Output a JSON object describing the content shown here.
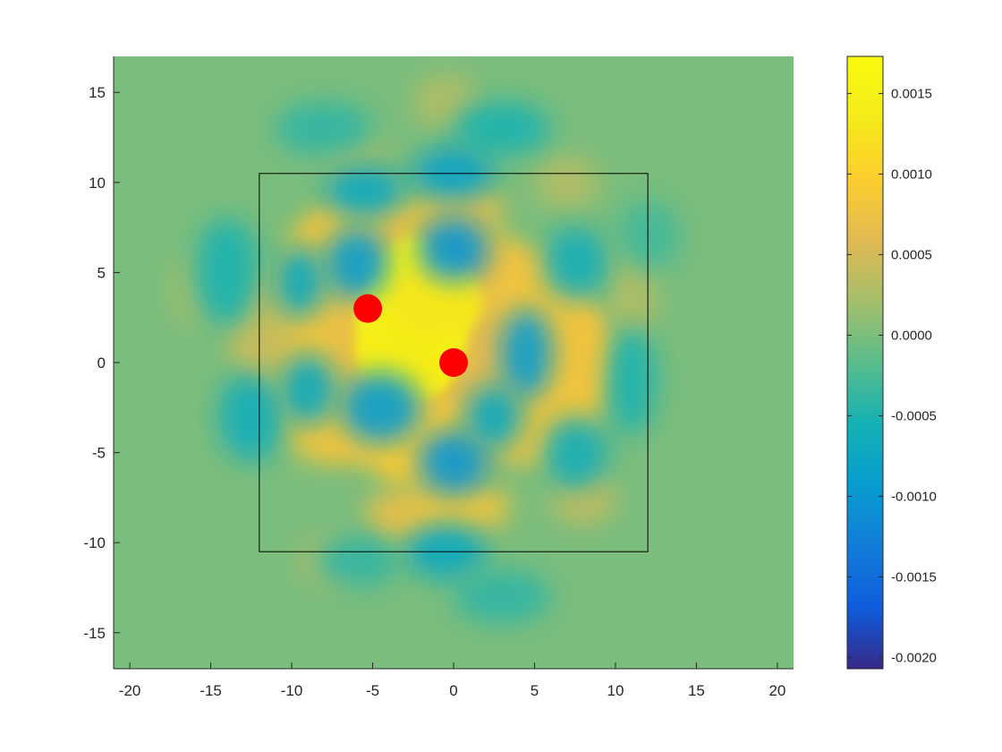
{
  "chart_data": {
    "type": "heatmap",
    "title": "",
    "xlabel": "",
    "ylabel": "",
    "xlim": [
      -21,
      21
    ],
    "ylim": [
      -17,
      17
    ],
    "x_ticks": [
      -20,
      -15,
      -10,
      -5,
      0,
      5,
      10,
      15,
      20
    ],
    "y_ticks": [
      15,
      10,
      5,
      0,
      -5,
      -10,
      -15
    ],
    "x_tick_labels": [
      "-20",
      "-15",
      "-10",
      "-5",
      "0",
      "5",
      "10",
      "15",
      "20"
    ],
    "y_tick_labels": [
      "15",
      "10",
      "5",
      "0",
      "-5",
      "-10",
      "-15"
    ],
    "colormap": "parula",
    "background_value": 0.0,
    "colorbar": {
      "range": [
        -0.00207,
        0.00173
      ],
      "ticks": [
        0.0015,
        0.001,
        0.0005,
        0.0,
        -0.0005,
        -0.001,
        -0.0015,
        -0.002
      ],
      "tick_labels": [
        "0.0015",
        "0.0010",
        "0.0005",
        "0.0000",
        "-0.0005",
        "-0.0010",
        "-0.0015",
        "-0.0020"
      ]
    },
    "points": [
      {
        "x": -5.3,
        "y": 3.0,
        "color": "#ff0000"
      },
      {
        "x": 0.0,
        "y": 0.0,
        "color": "#ff0000"
      }
    ],
    "box": {
      "x": [
        -12,
        12
      ],
      "y": [
        -10.5,
        10.5
      ],
      "color": "#000000"
    },
    "peak": {
      "x": -2.5,
      "y": 2.0,
      "value": 0.00165
    },
    "grid": false
  }
}
